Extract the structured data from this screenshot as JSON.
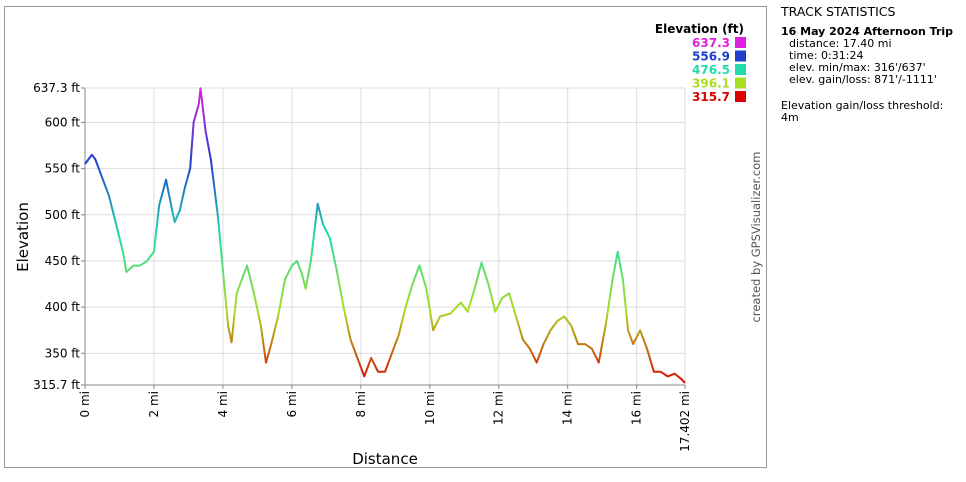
{
  "chart_data": {
    "type": "line",
    "y_label": "Elevation",
    "x_label": "Distance",
    "color_scale_title": "Elevation (ft)",
    "color_scale": [
      {
        "value": 637.3,
        "color": "#dd22dd"
      },
      {
        "value": 556.9,
        "color": "#1f3fcf"
      },
      {
        "value": 476.5,
        "color": "#22ddaa"
      },
      {
        "value": 396.1,
        "color": "#aadd22"
      },
      {
        "value": 315.7,
        "color": "#dd0000"
      }
    ],
    "xlim": [
      0,
      17.402
    ],
    "ylim": [
      315.7,
      637.3
    ],
    "xticks": [
      {
        "value": 0,
        "label": "0 mi"
      },
      {
        "value": 2,
        "label": "2 mi"
      },
      {
        "value": 4,
        "label": "4 mi"
      },
      {
        "value": 6,
        "label": "6 mi"
      },
      {
        "value": 8,
        "label": "8 mi"
      },
      {
        "value": 10,
        "label": "10 mi"
      },
      {
        "value": 12,
        "label": "12 mi"
      },
      {
        "value": 14,
        "label": "14 mi"
      },
      {
        "value": 16,
        "label": "16 mi"
      },
      {
        "value": 17.402,
        "label": "17.402 mi"
      }
    ],
    "yticks": [
      {
        "value": 315.7,
        "label": "315.7 ft"
      },
      {
        "value": 350,
        "label": "350 ft"
      },
      {
        "value": 400,
        "label": "400 ft"
      },
      {
        "value": 450,
        "label": "450 ft"
      },
      {
        "value": 500,
        "label": "500 ft"
      },
      {
        "value": 550,
        "label": "550 ft"
      },
      {
        "value": 600,
        "label": "600 ft"
      },
      {
        "value": 637.3,
        "label": "637.3 ft"
      }
    ],
    "grid": true,
    "x": [
      0,
      0.1,
      0.2,
      0.3,
      0.5,
      0.7,
      0.9,
      1.1,
      1.2,
      1.4,
      1.6,
      1.8,
      2.0,
      2.15,
      2.35,
      2.5,
      2.6,
      2.75,
      2.9,
      3.05,
      3.15,
      3.3,
      3.35,
      3.5,
      3.65,
      3.85,
      4.0,
      4.15,
      4.25,
      4.4,
      4.6,
      4.7,
      4.9,
      5.1,
      5.25,
      5.4,
      5.6,
      5.8,
      6.0,
      6.15,
      6.3,
      6.4,
      6.55,
      6.75,
      6.9,
      7.1,
      7.3,
      7.5,
      7.7,
      7.9,
      8.1,
      8.3,
      8.5,
      8.7,
      8.9,
      9.1,
      9.3,
      9.5,
      9.7,
      9.9,
      10.1,
      10.3,
      10.6,
      10.9,
      11.1,
      11.3,
      11.5,
      11.7,
      11.9,
      12.1,
      12.3,
      12.5,
      12.7,
      12.9,
      13.1,
      13.3,
      13.5,
      13.7,
      13.9,
      14.1,
      14.3,
      14.5,
      14.7,
      14.9,
      15.1,
      15.3,
      15.45,
      15.6,
      15.75,
      15.9,
      16.1,
      16.3,
      16.5,
      16.7,
      16.9,
      17.1,
      17.3,
      17.402
    ],
    "values": [
      555,
      560,
      565,
      560,
      540,
      520,
      490,
      460,
      438,
      445,
      445,
      450,
      460,
      510,
      538,
      510,
      492,
      505,
      530,
      550,
      600,
      620,
      637,
      590,
      560,
      500,
      440,
      380,
      362,
      415,
      435,
      445,
      415,
      380,
      340,
      360,
      390,
      430,
      445,
      450,
      435,
      420,
      450,
      512,
      490,
      475,
      440,
      400,
      365,
      345,
      325,
      345,
      330,
      330,
      350,
      370,
      400,
      425,
      445,
      420,
      375,
      390,
      393,
      405,
      395,
      420,
      448,
      425,
      395,
      410,
      415,
      390,
      365,
      355,
      340,
      360,
      375,
      385,
      390,
      380,
      360,
      360,
      355,
      340,
      380,
      430,
      460,
      430,
      375,
      360,
      375,
      355,
      330,
      330,
      325,
      328,
      322,
      318
    ]
  },
  "credit": "created by GPSVisualizer.com",
  "track_statistics": {
    "heading": "TRACK STATISTICS",
    "trip_name": "16 May 2024 Afternoon Trip",
    "lines": [
      "distance: 17.40 mi",
      "time: 0:31:24",
      "elev. min/max: 316'/637'",
      "elev. gain/loss: 871'/-1111'"
    ],
    "threshold_label": "Elevation gain/loss threshold:",
    "threshold_value": "4m"
  }
}
